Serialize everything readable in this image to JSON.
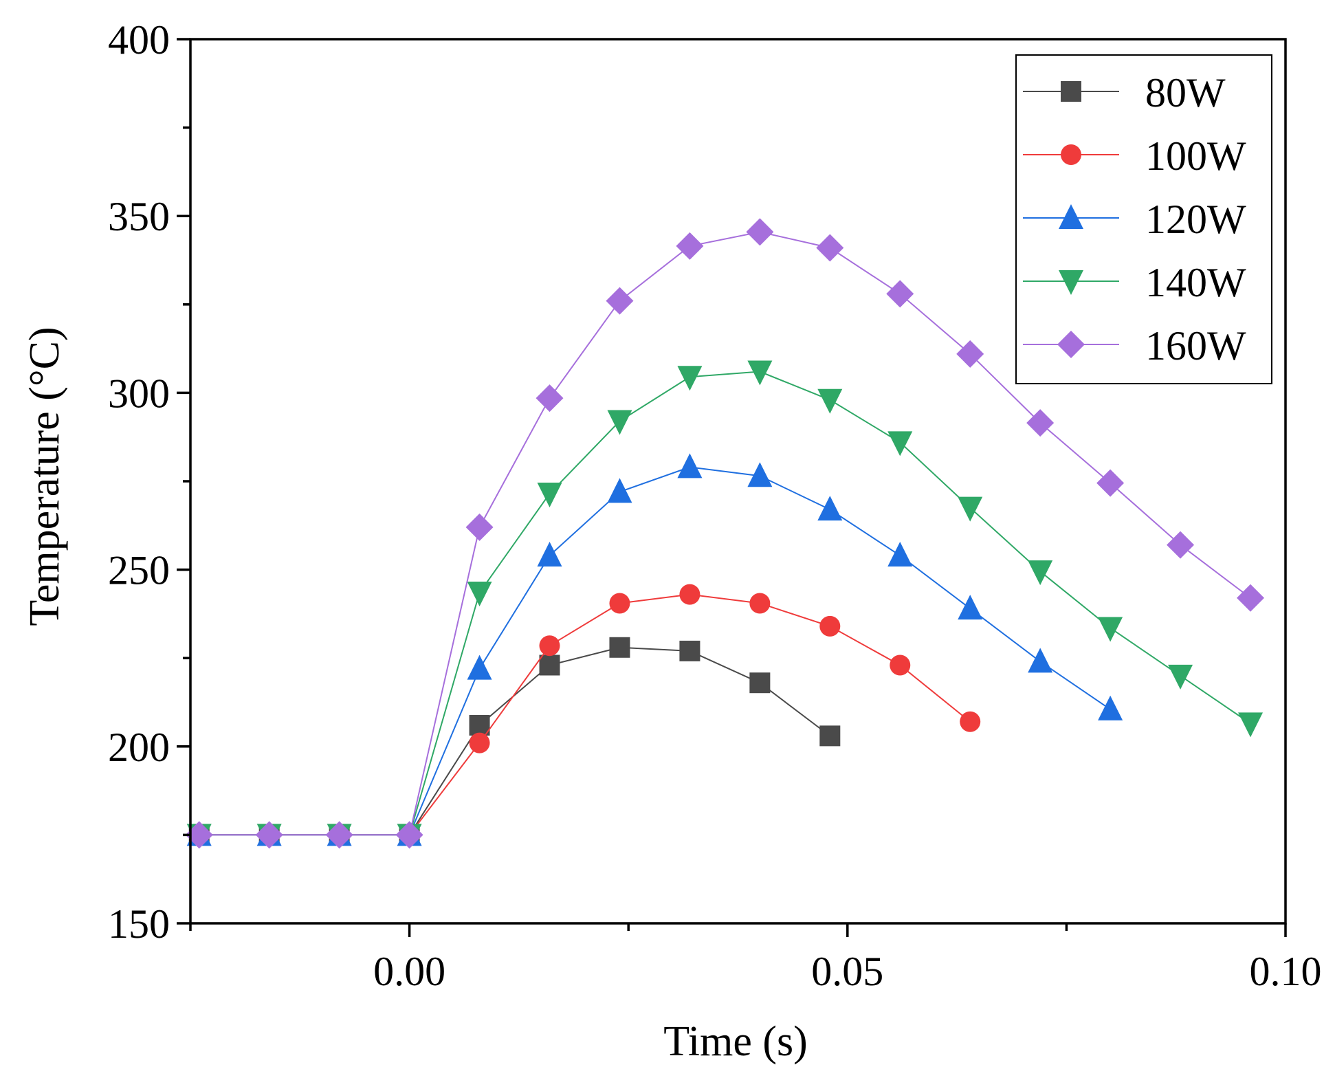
{
  "chart_data": {
    "type": "line",
    "title": "",
    "xlabel": "Time (s)",
    "ylabel": "Temperature (°C)",
    "xlim": [
      -0.025,
      0.1
    ],
    "ylim": [
      150,
      400
    ],
    "x_ticks": [
      0.0,
      0.05,
      0.1
    ],
    "x_tick_labels": [
      "0.00",
      "0.05",
      "0.10"
    ],
    "x_minor_ticks": [
      -0.025,
      0.025,
      0.075
    ],
    "y_ticks": [
      150,
      200,
      250,
      300,
      350,
      400
    ],
    "y_tick_labels": [
      "150",
      "200",
      "250",
      "300",
      "350",
      "400"
    ],
    "y_minor_ticks": [
      175,
      225,
      275,
      325,
      375
    ],
    "grid": false,
    "legend_position": "top-right",
    "series": [
      {
        "name": "80W",
        "color": "#4a4a4a",
        "marker": "square",
        "x": [
          -0.024,
          -0.016,
          -0.008,
          0.0,
          0.008,
          0.016,
          0.024,
          0.032,
          0.04,
          0.048
        ],
        "y": [
          175,
          175,
          175,
          175,
          206,
          223,
          228,
          227,
          218,
          203
        ]
      },
      {
        "name": "100W",
        "color": "#ef3b3b",
        "marker": "circle",
        "x": [
          -0.024,
          -0.016,
          -0.008,
          0.0,
          0.008,
          0.016,
          0.024,
          0.032,
          0.04,
          0.048,
          0.056,
          0.064
        ],
        "y": [
          175,
          175,
          175,
          175,
          201,
          228.5,
          240.5,
          243,
          240.5,
          234,
          223,
          207
        ]
      },
      {
        "name": "120W",
        "color": "#1f6fe0",
        "marker": "triangle-up",
        "x": [
          -0.024,
          -0.016,
          -0.008,
          0.0,
          0.008,
          0.016,
          0.024,
          0.032,
          0.04,
          0.048,
          0.056,
          0.064,
          0.072,
          0.08
        ],
        "y": [
          175,
          175,
          175,
          175,
          222,
          254,
          272,
          279,
          276.5,
          267,
          254,
          239,
          224,
          210.5
        ]
      },
      {
        "name": "140W",
        "color": "#2fa866",
        "marker": "triangle-down",
        "x": [
          -0.024,
          -0.016,
          -0.008,
          0.0,
          0.008,
          0.016,
          0.024,
          0.032,
          0.04,
          0.048,
          0.056,
          0.064,
          0.072,
          0.08,
          0.088,
          0.096
        ],
        "y": [
          175,
          175,
          175,
          175,
          243.5,
          271.5,
          292,
          304.5,
          306,
          298,
          286,
          267.5,
          249.5,
          233.5,
          220,
          206.5
        ]
      },
      {
        "name": "160W",
        "color": "#a66fdc",
        "marker": "diamond",
        "x": [
          -0.024,
          -0.016,
          -0.008,
          0.0,
          0.008,
          0.016,
          0.024,
          0.032,
          0.04,
          0.048,
          0.056,
          0.064,
          0.072,
          0.08,
          0.088,
          0.096
        ],
        "y": [
          175,
          175,
          175,
          175,
          262,
          298.5,
          326,
          341.5,
          345.5,
          341,
          328,
          311,
          291.5,
          274.5,
          257,
          242
        ]
      }
    ]
  }
}
